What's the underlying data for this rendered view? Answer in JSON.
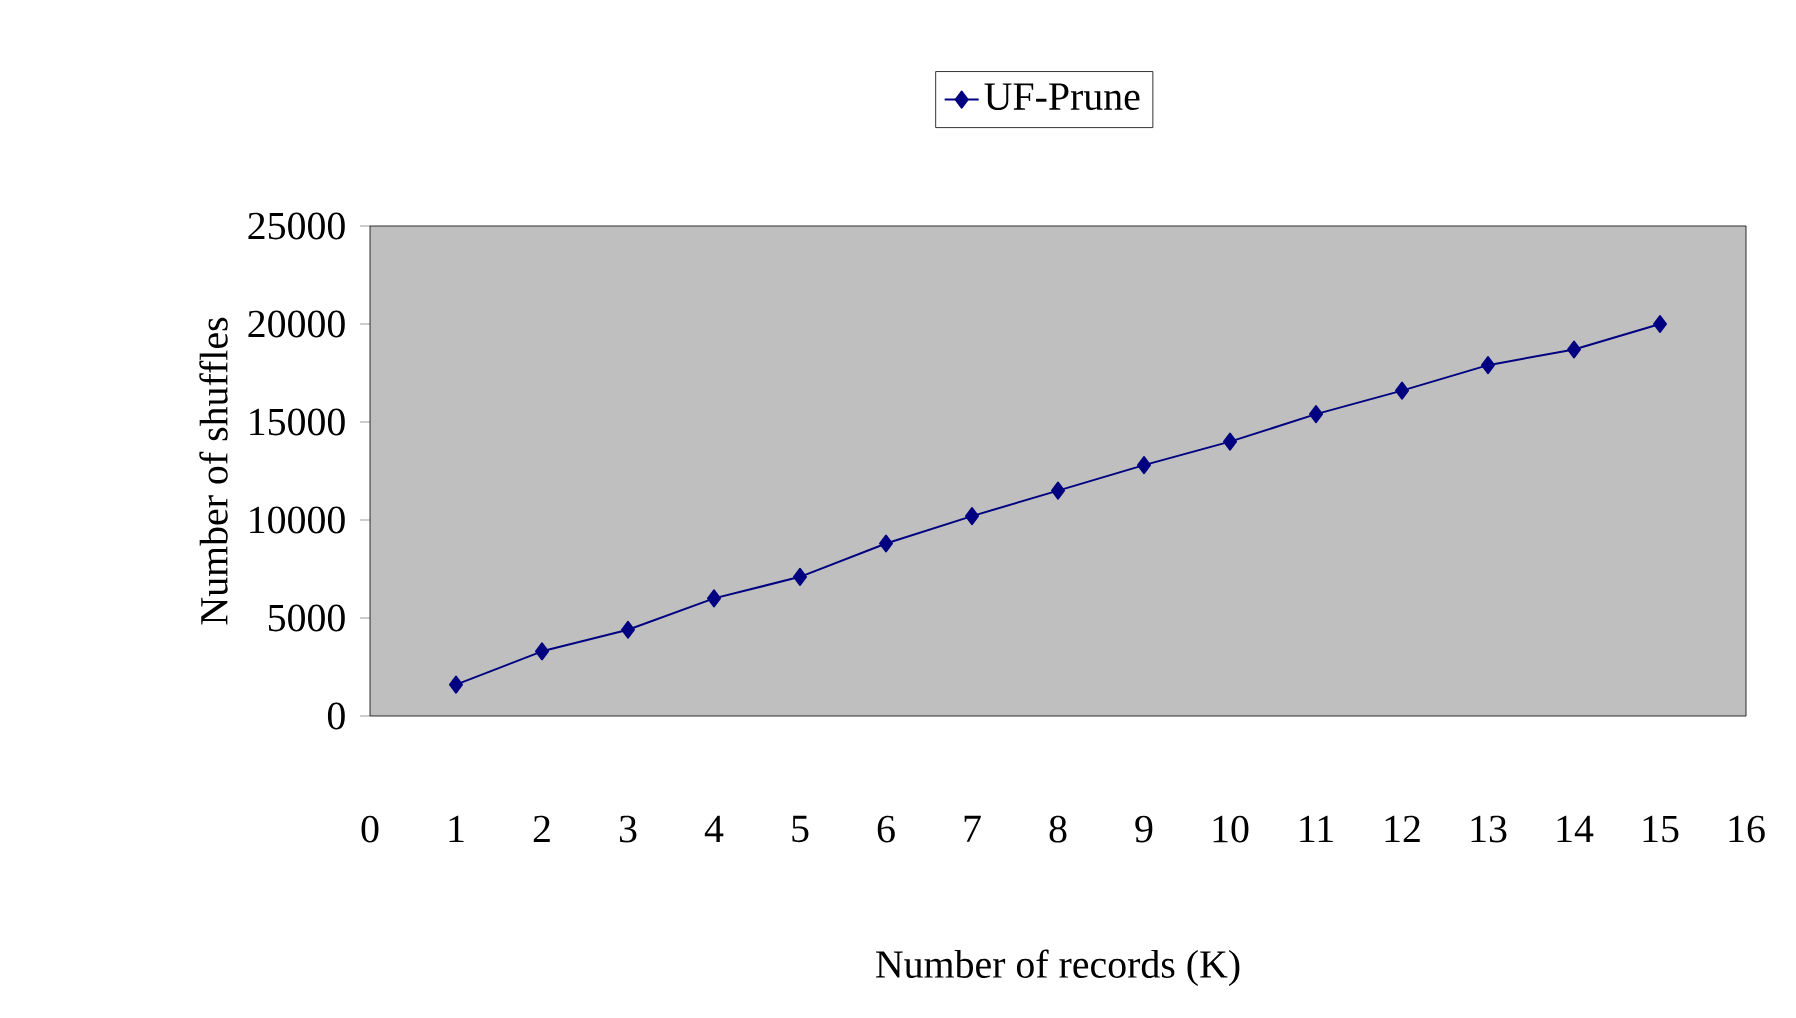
{
  "chart_data": {
    "type": "line",
    "xlabel": "Number of records (K)",
    "ylabel": "Number of shuffles",
    "x": [
      1,
      2,
      3,
      4,
      5,
      6,
      7,
      8,
      9,
      10,
      11,
      12,
      13,
      14,
      15
    ],
    "series": [
      {
        "name": "UF-Prune",
        "color": "#000080",
        "values": [
          1600,
          3300,
          4400,
          6000,
          7100,
          8800,
          10200,
          11500,
          12800,
          14000,
          15400,
          16600,
          17900,
          18700,
          20000
        ]
      }
    ],
    "xlim": [
      0,
      16
    ],
    "xticks": [
      0,
      1,
      2,
      3,
      4,
      5,
      6,
      7,
      8,
      9,
      10,
      11,
      12,
      13,
      14,
      15,
      16
    ],
    "ylim": [
      0,
      25000
    ],
    "yticks": [
      0,
      5000,
      10000,
      15000,
      20000,
      25000
    ],
    "grid": false,
    "legend": "top",
    "marker": "diamond",
    "line_style": "solid"
  }
}
